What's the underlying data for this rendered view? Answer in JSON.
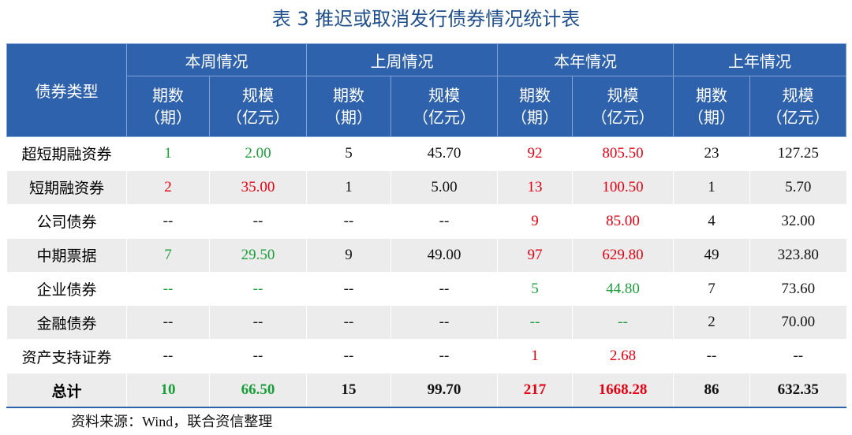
{
  "title": "表 3  推迟或取消发行债券情况统计表",
  "table": {
    "corner": "债券类型",
    "groups": [
      "本周情况",
      "上周情况",
      "本年情况",
      "上年情况"
    ],
    "subheaders": [
      [
        "期数",
        "（期）"
      ],
      [
        "规模",
        "（亿元）"
      ],
      [
        "期数",
        "（期）"
      ],
      [
        "规模",
        "（亿元）"
      ],
      [
        "期数",
        "（期）"
      ],
      [
        "规模",
        "（亿元）"
      ],
      [
        "期数",
        "（期）"
      ],
      [
        "规模",
        "（亿元）"
      ]
    ],
    "rows": [
      {
        "label": "超短期融资券",
        "cells": [
          "1",
          "2.00",
          "5",
          "45.70",
          "92",
          "805.50",
          "23",
          "127.25"
        ],
        "colors": [
          "#1a9e3a",
          "#111111",
          "#e60012",
          "#111111"
        ]
      },
      {
        "label": "短期融资券",
        "cells": [
          "2",
          "35.00",
          "1",
          "5.00",
          "13",
          "100.50",
          "1",
          "5.70"
        ],
        "colors": [
          "#e60012",
          "#111111",
          "#e60012",
          "#111111"
        ]
      },
      {
        "label": "公司债券",
        "cells": [
          "--",
          "--",
          "--",
          "--",
          "9",
          "85.00",
          "4",
          "32.00"
        ],
        "colors": [
          "#111111",
          "#111111",
          "#e60012",
          "#111111"
        ]
      },
      {
        "label": "中期票据",
        "cells": [
          "7",
          "29.50",
          "9",
          "49.00",
          "97",
          "629.80",
          "49",
          "323.80"
        ],
        "colors": [
          "#1a9e3a",
          "#111111",
          "#e60012",
          "#111111"
        ]
      },
      {
        "label": "企业债券",
        "cells": [
          "--",
          "--",
          "--",
          "--",
          "5",
          "44.80",
          "7",
          "73.60"
        ],
        "colors": [
          "#1a9e3a",
          "#111111",
          "#1a9e3a",
          "#111111"
        ]
      },
      {
        "label": "金融债券",
        "cells": [
          "--",
          "--",
          "--",
          "--",
          "--",
          "--",
          "2",
          "70.00"
        ],
        "colors": [
          "#111111",
          "#111111",
          "#1a9e3a",
          "#111111"
        ]
      },
      {
        "label": "资产支持证券",
        "cells": [
          "--",
          "--",
          "--",
          "--",
          "1",
          "2.68",
          "--",
          "--"
        ],
        "colors": [
          "#111111",
          "#111111",
          "#e60012",
          "#111111"
        ]
      },
      {
        "label": "总计",
        "cells": [
          "10",
          "66.50",
          "15",
          "99.70",
          "217",
          "1668.28",
          "86",
          "632.35"
        ],
        "colors": [
          "#1a9e3a",
          "#111111",
          "#e60012",
          "#111111"
        ],
        "bold": true
      }
    ]
  },
  "source": "资料来源：Wind，联合资信整理"
}
